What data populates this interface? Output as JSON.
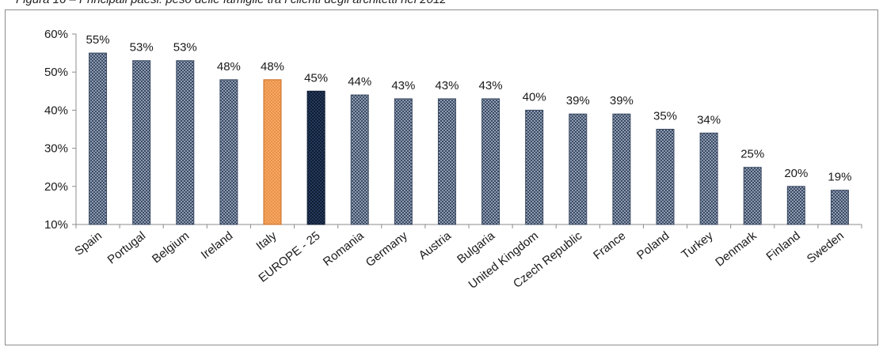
{
  "caption": "Figura 16 – Principali paesi: peso delle famiglie tra i clienti degli architetti nel 2012",
  "colors": {
    "default_bar": "#8f9db3",
    "default_pattern_dark": "#3b4a63",
    "highlight_italy": "#f7a764",
    "highlight_italy_edge": "#c86b1f",
    "highlight_europe": "#243a5c",
    "highlight_europe_pattern": "#0f1d33"
  },
  "chart_data": {
    "type": "bar",
    "title": "",
    "xlabel": "",
    "ylabel": "",
    "ylim": [
      10,
      60
    ],
    "yticks": [
      "10%",
      "20%",
      "30%",
      "40%",
      "50%",
      "60%"
    ],
    "grid": false,
    "legend": "none",
    "categories": [
      "Spain",
      "Portugal",
      "Belgium",
      "Ireland",
      "Italy",
      "EUROPE - 25",
      "Romania",
      "Germany",
      "Austria",
      "Bulgaria",
      "United Kingdom",
      "Czech Republic",
      "France",
      "Poland",
      "Turkey",
      "Denmark",
      "Finland",
      "Sweden"
    ],
    "values": [
      55,
      53,
      53,
      48,
      48,
      45,
      44,
      43,
      43,
      43,
      40,
      39,
      39,
      35,
      34,
      25,
      20,
      19
    ],
    "value_labels": [
      "55%",
      "53%",
      "53%",
      "48%",
      "48%",
      "45%",
      "44%",
      "43%",
      "43%",
      "43%",
      "40%",
      "39%",
      "39%",
      "35%",
      "34%",
      "25%",
      "20%",
      "19%"
    ],
    "highlights": {
      "Italy": "italy",
      "EUROPE - 25": "europe"
    }
  }
}
